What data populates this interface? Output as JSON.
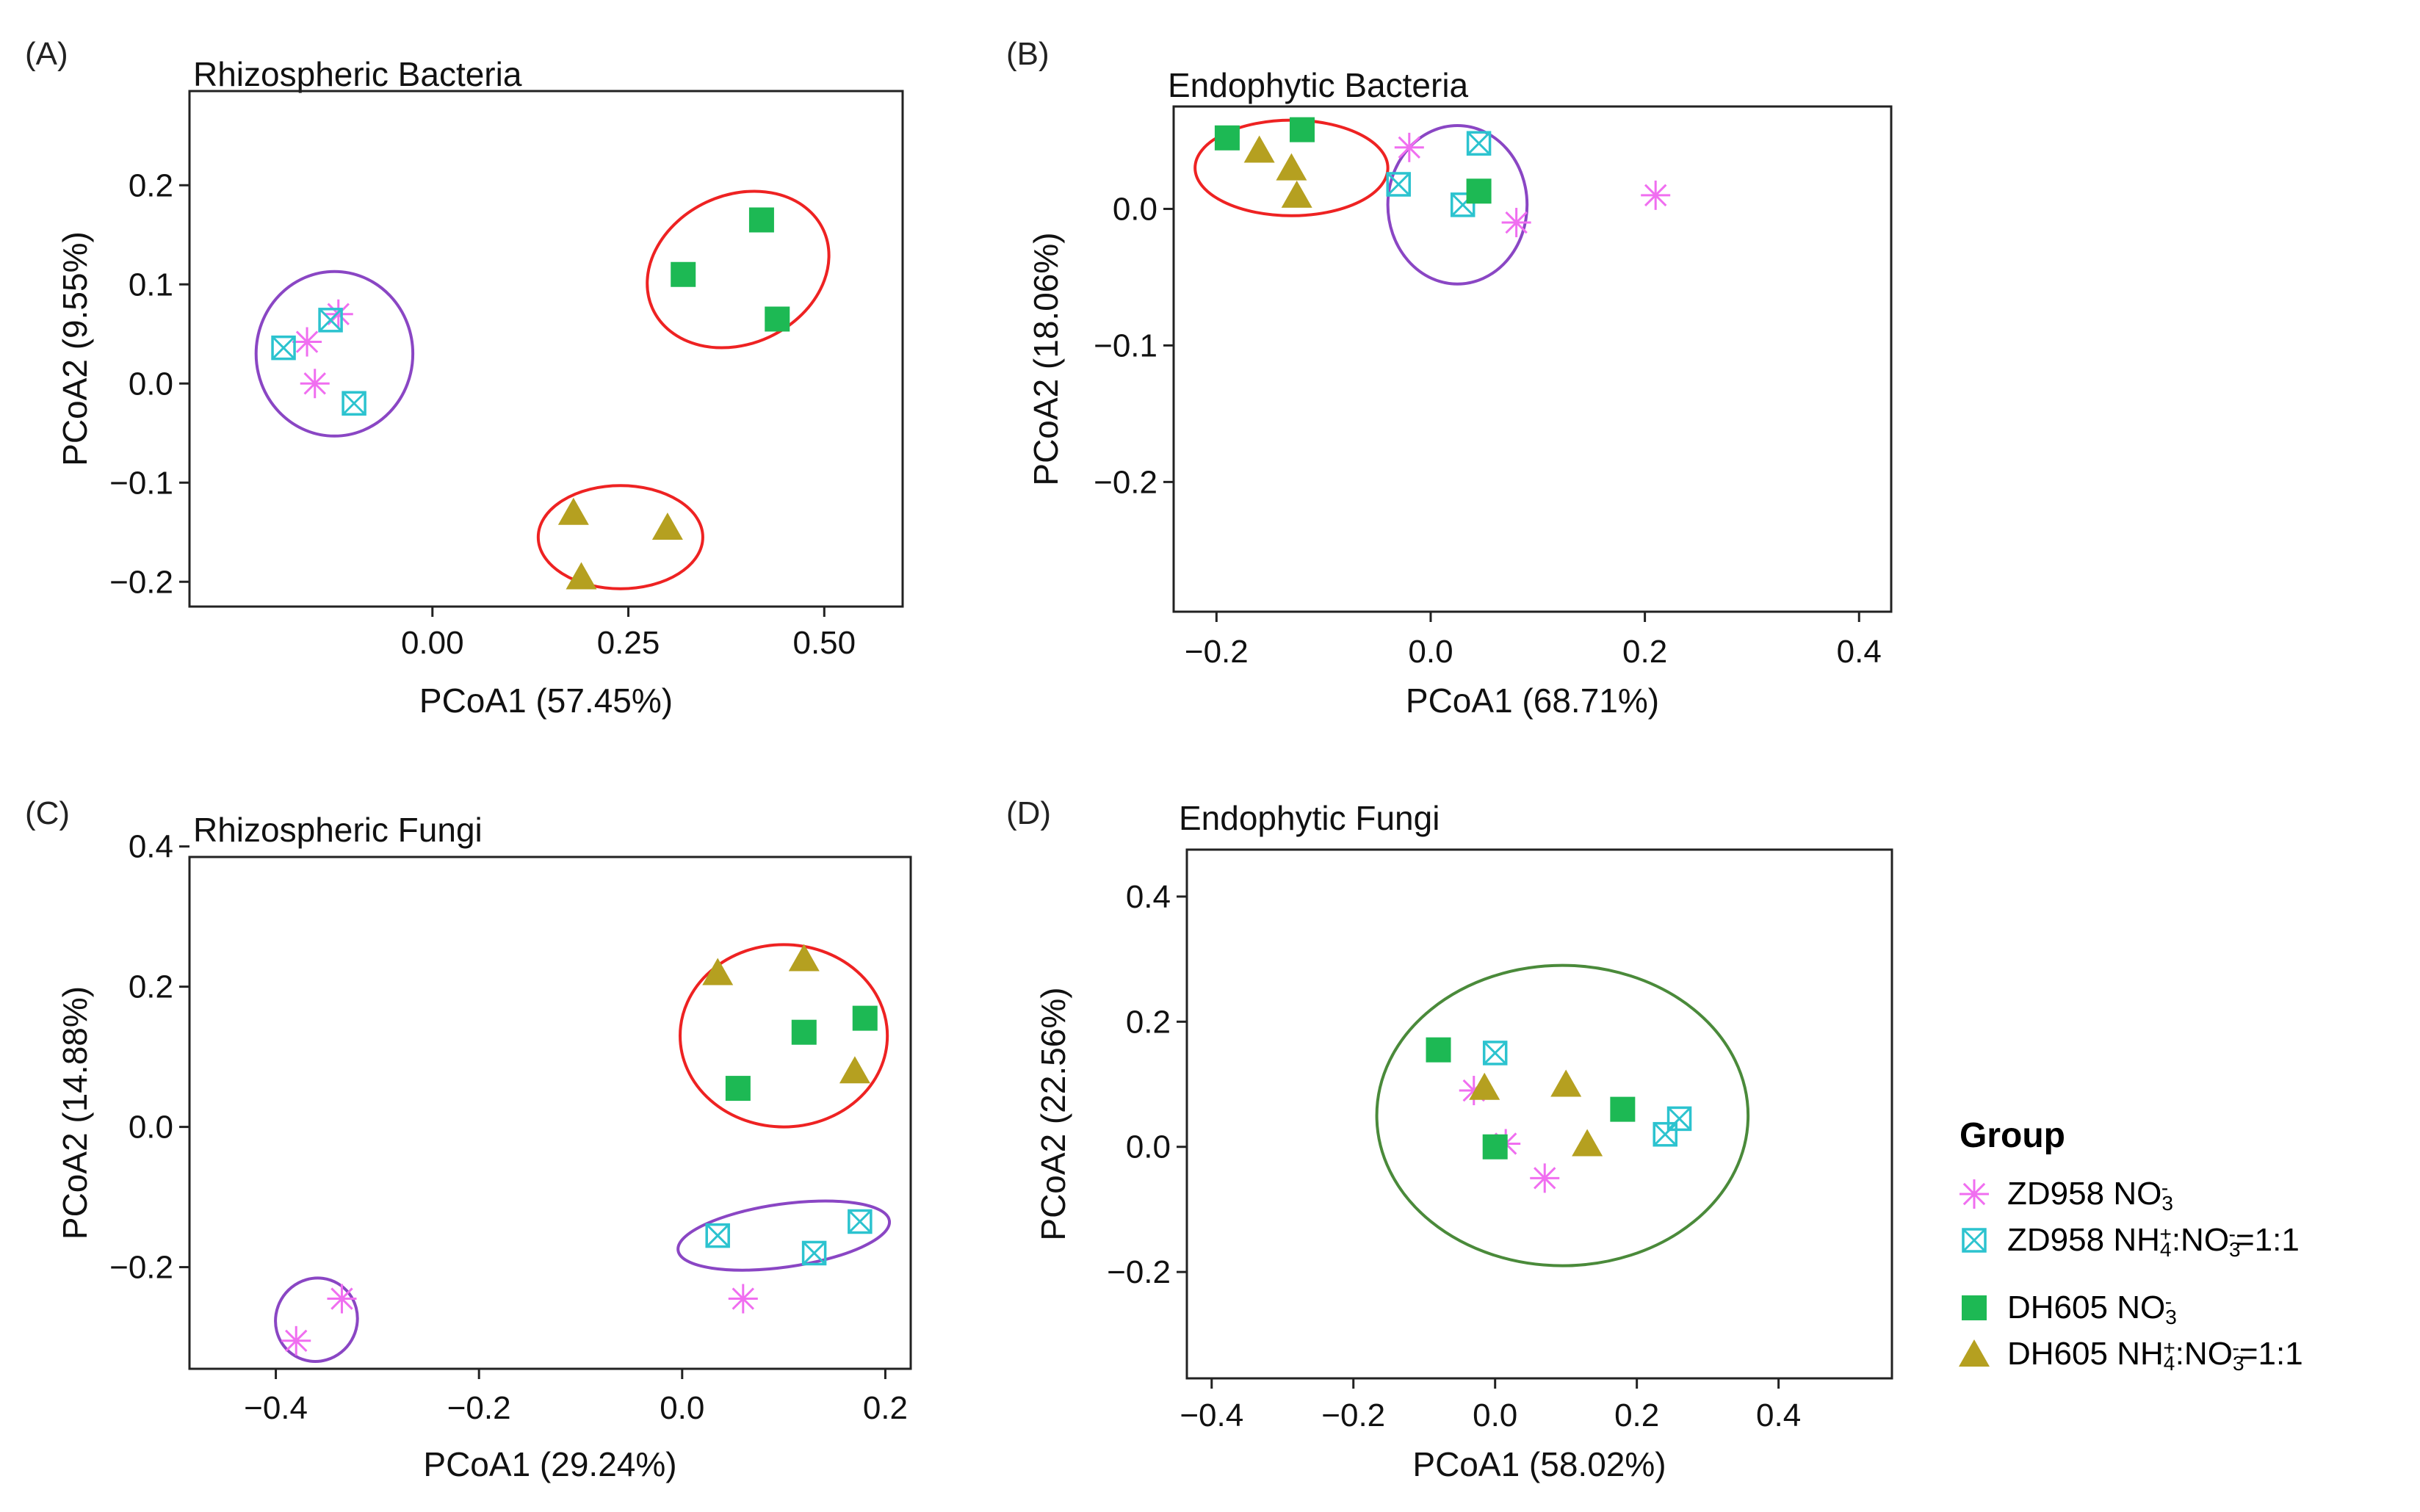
{
  "legend": {
    "title": "Group",
    "items": [
      {
        "key": "zd_no3",
        "color": "#f06ef0",
        "marker": "asterisk",
        "name": "ZD958",
        "formula": [
          {
            "t": "NO"
          },
          {
            "sub": "3"
          },
          {
            "sup": "-"
          }
        ]
      },
      {
        "key": "zd_mix",
        "color": "#2cc3cf",
        "marker": "boxcross",
        "name": "ZD958",
        "formula": [
          {
            "t": "NH"
          },
          {
            "sub": "4"
          },
          {
            "sup": "+"
          },
          {
            "t": ":NO"
          },
          {
            "sub": "3"
          },
          {
            "sup": "-"
          },
          {
            "t": "=1:1"
          }
        ]
      },
      {
        "key": "dh_no3",
        "color": "#1db954",
        "marker": "square",
        "name": "DH605",
        "formula": [
          {
            "t": "NO"
          },
          {
            "sub": "3"
          },
          {
            "sup": "-"
          }
        ]
      },
      {
        "key": "dh_mix",
        "color": "#b5a020",
        "marker": "triangle",
        "name": "DH605",
        "formula": [
          {
            "t": "NH"
          },
          {
            "sub": "4"
          },
          {
            "sup": "+"
          },
          {
            "t": ":NO"
          },
          {
            "sub": "3"
          },
          {
            "sup": "-"
          },
          {
            "t": "=1:1"
          }
        ]
      }
    ]
  },
  "chart_data": [
    {
      "type": "scatter",
      "panel": "(A)",
      "title": "Rhizospheric Bacteria",
      "xlabel": "PCoA1 (57.45%)",
      "ylabel": "PCoA2 (9.55%)",
      "xlim": [
        -0.31,
        0.6
      ],
      "ylim": [
        -0.225,
        0.295
      ],
      "xticks": [
        0.0,
        0.25,
        0.5
      ],
      "xtick_labels": [
        "0.00",
        "0.25",
        "0.50"
      ],
      "yticks": [
        -0.2,
        -0.1,
        0.0,
        0.1,
        0.2
      ],
      "ytick_labels": [
        "−0.2",
        "−0.1",
        "0.0",
        "0.1",
        "0.2"
      ],
      "series": [
        {
          "name": "ZD958 NO3-",
          "key": "zd_no3",
          "points": [
            [
              -0.16,
              0.042
            ],
            [
              -0.12,
              0.07
            ],
            [
              -0.15,
              0.0
            ]
          ]
        },
        {
          "name": "ZD958 NH4+:NO3-=1:1",
          "key": "zd_mix",
          "points": [
            [
              -0.19,
              0.036
            ],
            [
              -0.13,
              0.064
            ],
            [
              -0.1,
              -0.02
            ]
          ]
        },
        {
          "name": "DH605 NO3-",
          "key": "dh_no3",
          "points": [
            [
              0.32,
              0.11
            ],
            [
              0.42,
              0.165
            ],
            [
              0.44,
              0.065
            ]
          ]
        },
        {
          "name": "DH605 NH4+:NO3-=1:1",
          "key": "dh_mix",
          "points": [
            [
              0.18,
              -0.13
            ],
            [
              0.3,
              -0.145
            ],
            [
              0.19,
              -0.195
            ]
          ]
        }
      ],
      "ellipses": [
        {
          "color": "#8a46c4",
          "center": [
            -0.125,
            0.03
          ],
          "radii": [
            0.1,
            0.083
          ],
          "angle": 0
        },
        {
          "color": "#ee2222",
          "center": [
            0.39,
            0.115
          ],
          "radii": [
            0.12,
            0.075
          ],
          "angle": -25
        },
        {
          "color": "#ee2222",
          "center": [
            0.24,
            -0.155
          ],
          "radii": [
            0.105,
            0.052
          ],
          "angle": 0
        }
      ]
    },
    {
      "type": "scatter",
      "panel": "(B)",
      "title": "Endophytic Bacteria",
      "xlabel": "PCoA1 (68.71%)",
      "ylabel": "PCoA2 (18.06%)",
      "xlim": [
        -0.24,
        0.43
      ],
      "ylim": [
        -0.295,
        0.075
      ],
      "xticks": [
        -0.2,
        0.0,
        0.2,
        0.4
      ],
      "xtick_labels": [
        "−0.2",
        "0.0",
        "0.2",
        "0.4"
      ],
      "yticks": [
        -0.2,
        -0.1,
        0.0
      ],
      "ytick_labels": [
        "−0.2",
        "−0.1",
        "0.0"
      ],
      "series": [
        {
          "name": "ZD958 NO3-",
          "key": "zd_no3",
          "points": [
            [
              -0.02,
              0.045
            ],
            [
              0.08,
              -0.01
            ],
            [
              0.21,
              0.01
            ]
          ]
        },
        {
          "name": "ZD958 NH4+:NO3-=1:1",
          "key": "zd_mix",
          "points": [
            [
              -0.03,
              0.018
            ],
            [
              0.045,
              0.048
            ],
            [
              0.03,
              0.003
            ]
          ]
        },
        {
          "name": "DH605 NO3-",
          "key": "dh_no3",
          "points": [
            [
              -0.19,
              0.052
            ],
            [
              -0.12,
              0.058
            ],
            [
              0.045,
              0.013
            ]
          ]
        },
        {
          "name": "DH605 NH4+:NO3-=1:1",
          "key": "dh_mix",
          "points": [
            [
              -0.16,
              0.043
            ],
            [
              -0.13,
              0.03
            ],
            [
              -0.125,
              0.01
            ]
          ]
        }
      ],
      "ellipses": [
        {
          "color": "#ee2222",
          "center": [
            -0.13,
            0.03
          ],
          "radii": [
            0.09,
            0.035
          ],
          "angle": 0
        },
        {
          "color": "#8a46c4",
          "center": [
            0.025,
            0.003
          ],
          "radii": [
            0.065,
            0.058
          ],
          "angle": 0
        }
      ]
    },
    {
      "type": "scatter",
      "panel": "(C)",
      "title": "Rhizospheric Fungi",
      "xlabel": "PCoA1 (29.24%)",
      "ylabel": "PCoA2 (14.88%)",
      "xlim": [
        -0.485,
        0.225
      ],
      "ylim": [
        -0.345,
        0.385
      ],
      "xticks": [
        -0.4,
        -0.2,
        0.0,
        0.2
      ],
      "xtick_labels": [
        "−0.4",
        "−0.2",
        "0.0",
        "0.2"
      ],
      "yticks": [
        -0.2,
        0.0,
        0.2,
        0.4
      ],
      "ytick_labels": [
        "−0.2",
        "0.0",
        "0.2",
        "0.4"
      ],
      "series": [
        {
          "name": "ZD958 NO3-",
          "key": "zd_no3",
          "points": [
            [
              -0.335,
              -0.245
            ],
            [
              -0.38,
              -0.305
            ],
            [
              0.06,
              -0.245
            ]
          ]
        },
        {
          "name": "ZD958 NH4+:NO3-=1:1",
          "key": "zd_mix",
          "points": [
            [
              0.035,
              -0.155
            ],
            [
              0.13,
              -0.18
            ],
            [
              0.175,
              -0.135
            ]
          ]
        },
        {
          "name": "DH605 NO3-",
          "key": "dh_no3",
          "points": [
            [
              0.12,
              0.135
            ],
            [
              0.18,
              0.155
            ],
            [
              0.055,
              0.055
            ]
          ]
        },
        {
          "name": "DH605 NH4+:NO3-=1:1",
          "key": "dh_mix",
          "points": [
            [
              0.035,
              0.22
            ],
            [
              0.12,
              0.24
            ],
            [
              0.17,
              0.08
            ]
          ]
        }
      ],
      "ellipses": [
        {
          "color": "#ee2222",
          "center": [
            0.1,
            0.13
          ],
          "radii": [
            0.102,
            0.13
          ],
          "angle": 0
        },
        {
          "color": "#8a46c4",
          "center": [
            0.1,
            -0.155
          ],
          "radii": [
            0.105,
            0.045
          ],
          "angle": -8
        },
        {
          "color": "#8a46c4",
          "center": [
            -0.36,
            -0.275
          ],
          "radii": [
            0.04,
            0.06
          ],
          "angle": 30
        }
      ]
    },
    {
      "type": "scatter",
      "panel": "(D)",
      "title": "Endophytic Fungi",
      "xlabel": "PCoA1 (58.02%)",
      "ylabel": "PCoA2 (22.56%)",
      "xlim": [
        -0.435,
        0.56
      ],
      "ylim": [
        -0.37,
        0.475
      ],
      "xticks": [
        -0.4,
        -0.2,
        0.0,
        0.2,
        0.4
      ],
      "xtick_labels": [
        "−0.4",
        "−0.2",
        "0.0",
        "0.2",
        "0.4"
      ],
      "yticks": [
        -0.2,
        0.0,
        0.2,
        0.4
      ],
      "ytick_labels": [
        "−0.2",
        "0.0",
        "0.2",
        "0.4"
      ],
      "series": [
        {
          "name": "ZD958 NO3-",
          "key": "zd_no3",
          "points": [
            [
              -0.03,
              0.09
            ],
            [
              0.015,
              0.005
            ],
            [
              0.07,
              -0.05
            ]
          ]
        },
        {
          "name": "ZD958 NH4+:NO3-=1:1",
          "key": "zd_mix",
          "points": [
            [
              0.0,
              0.15
            ],
            [
              0.24,
              0.02
            ],
            [
              0.26,
              0.045
            ]
          ]
        },
        {
          "name": "DH605 NO3-",
          "key": "dh_no3",
          "points": [
            [
              -0.08,
              0.155
            ],
            [
              0.0,
              0.0
            ],
            [
              0.18,
              0.06
            ]
          ]
        },
        {
          "name": "DH605 NH4+:NO3-=1:1",
          "key": "dh_mix",
          "points": [
            [
              -0.015,
              0.095
            ],
            [
              0.1,
              0.1
            ],
            [
              0.13,
              0.005
            ]
          ]
        }
      ],
      "ellipses": [
        {
          "color": "#4a8a3a",
          "center": [
            0.095,
            0.05
          ],
          "radii": [
            0.262,
            0.24
          ],
          "angle": 0
        }
      ]
    }
  ]
}
